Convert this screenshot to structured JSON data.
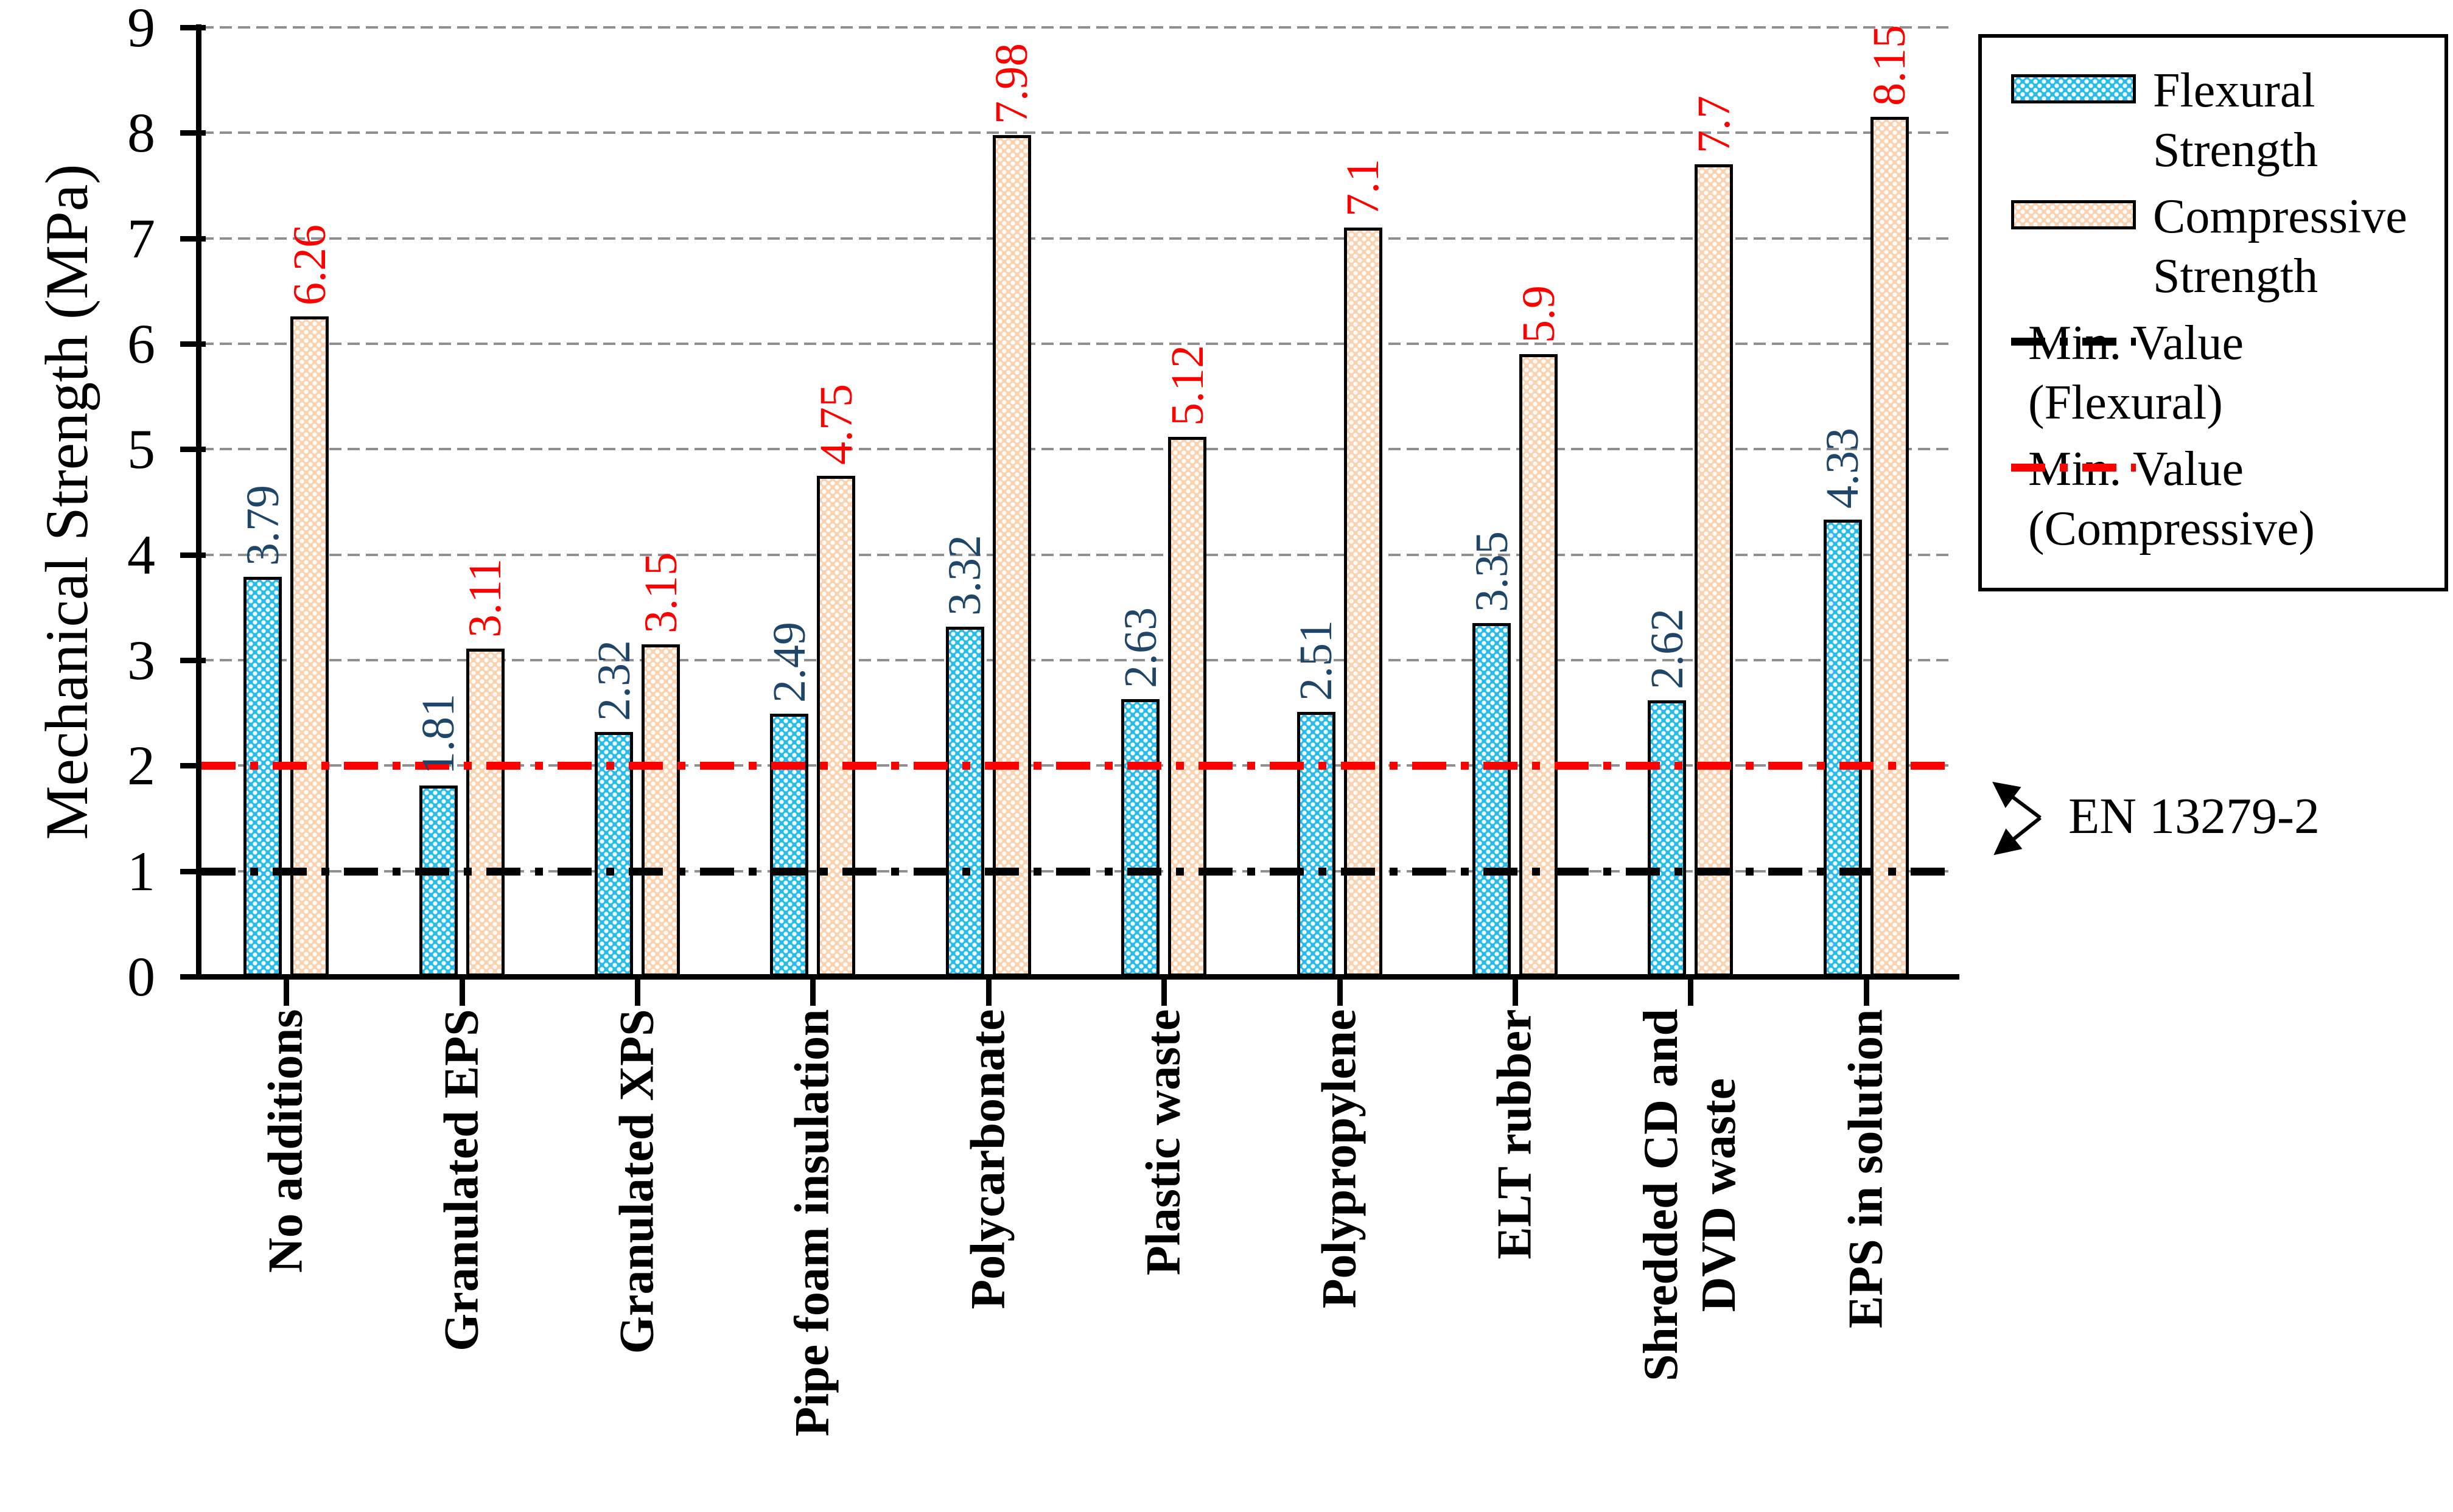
{
  "chart_data": {
    "type": "bar",
    "title": "",
    "xlabel": "",
    "ylabel": "Mechanical Strength (MPa)",
    "ylim": [
      0,
      9
    ],
    "ytick_step": 1,
    "grid": "horizontal-dashed",
    "legend_position": "outside-right",
    "categories": [
      "No additions",
      "Granulated EPS",
      "Granulated XPS",
      "Pipe foam insulation",
      "Polycarbonate",
      "Plastic waste",
      "Polypropylene",
      "ELT rubber",
      "Shredded CD and DVD waste",
      "EPS in solution"
    ],
    "category_lines": [
      [
        "No additions"
      ],
      [
        "Granulated EPS"
      ],
      [
        "Granulated XPS"
      ],
      [
        "Pipe foam insulation"
      ],
      [
        "Polycarbonate"
      ],
      [
        "Plastic waste"
      ],
      [
        "Polypropylene"
      ],
      [
        "ELT rubber"
      ],
      [
        "Shredded CD and",
        "DVD waste"
      ],
      [
        "EPS in solution"
      ]
    ],
    "series": [
      {
        "name": "Flexural Strength",
        "values": [
          3.79,
          1.81,
          2.32,
          2.49,
          3.32,
          2.63,
          2.51,
          3.35,
          2.62,
          4.33
        ],
        "labels": [
          "3.79",
          "1.81",
          "2.32",
          "2.49",
          "3.32",
          "2.63",
          "2.51",
          "3.35",
          "2.62",
          "4.33"
        ],
        "fill": "#27BBEA",
        "label_color": "#1F4568"
      },
      {
        "name": "Compressive Strength",
        "values": [
          6.26,
          3.11,
          3.15,
          4.75,
          7.98,
          5.12,
          7.1,
          5.9,
          7.7,
          8.15
        ],
        "labels": [
          "6.26",
          "3.11",
          "3.15",
          "4.75",
          "7.98",
          "5.12",
          "7.1",
          "5.9",
          "7.7",
          "8.15"
        ],
        "fill": "#FBD2AF",
        "label_color": "#FF0000"
      }
    ],
    "ref_lines": [
      {
        "name": "Min. Value (Flexural)",
        "value": 1,
        "color": "#000000"
      },
      {
        "name": "Min. Value (Compressive)",
        "value": 2,
        "color": "#FF0000"
      }
    ],
    "annotation": "EN 13279-2"
  },
  "y_axis": {
    "title": "Mechanical Strength (MPa)"
  },
  "legend": {
    "items": [
      {
        "swatch": "flexural",
        "line1": "Flexural",
        "line2": "Strength"
      },
      {
        "swatch": "compressive",
        "line1": "Compressive",
        "line2": "Strength"
      },
      {
        "swatch": "line-black",
        "line1": "Min. Value",
        "line2": "(Flexural)"
      },
      {
        "swatch": "line-red",
        "line1": "Min. Value",
        "line2": "(Compressive)"
      }
    ]
  },
  "annotation": {
    "label": "EN 13279-2"
  }
}
